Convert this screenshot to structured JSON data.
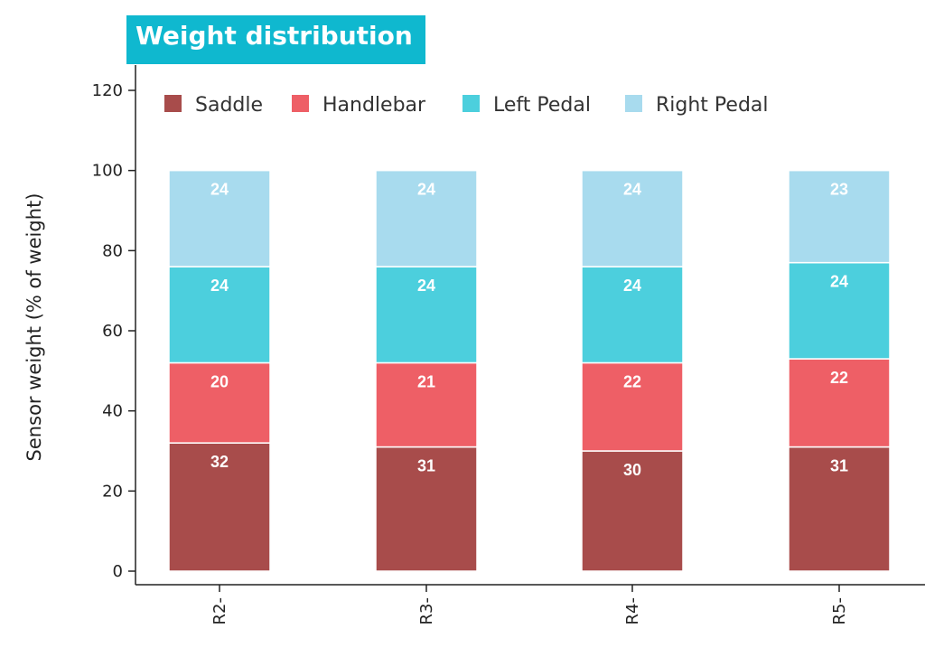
{
  "colors": {
    "Saddle": "#a84c4b",
    "Handlebar": "#ee5f66",
    "Left Pedal": "#4ccfdd",
    "Right Pedal": "#a8dbee",
    "title_bg": "#0fb8cf"
  },
  "chart_data": {
    "type": "bar",
    "stacked": true,
    "title": "Weight distribution",
    "xlabel": "",
    "ylabel": "Sensor weight (% of weight)",
    "ylim": [
      0,
      120
    ],
    "yticks": [
      0,
      20,
      40,
      60,
      80,
      100,
      120
    ],
    "categories": [
      "R2-",
      "R3-",
      "R4-",
      "R5-"
    ],
    "legend_position": "top",
    "grid": false,
    "series": [
      {
        "name": "Saddle",
        "values": [
          32,
          31,
          30,
          31
        ]
      },
      {
        "name": "Handlebar",
        "values": [
          20,
          21,
          22,
          22
        ]
      },
      {
        "name": "Left Pedal",
        "values": [
          24,
          24,
          24,
          24
        ]
      },
      {
        "name": "Right Pedal",
        "values": [
          24,
          24,
          24,
          23
        ]
      }
    ]
  }
}
